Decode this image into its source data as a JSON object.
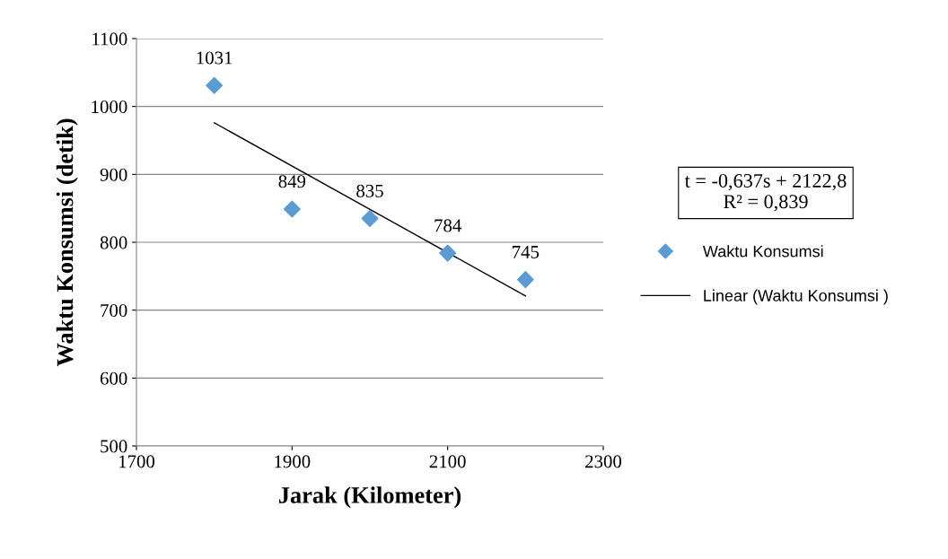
{
  "chart_data": {
    "type": "scatter",
    "xlabel": "Jarak (Kilometer)",
    "ylabel": "Waktu Konsumsi (detik)",
    "x": [
      1800,
      1900,
      2000,
      2100,
      2200
    ],
    "series": [
      {
        "name": "Waktu Konsumsi",
        "color": "#5b9bd5",
        "marker": "diamond",
        "values": [
          1031,
          849,
          835,
          784,
          745
        ],
        "data_labels": true
      },
      {
        "name": "Linear (Waktu Konsumsi )",
        "type": "line",
        "color": "#000000",
        "x": [
          1800,
          2200
        ],
        "values": [
          976,
          721
        ]
      }
    ],
    "annotations": [
      "t = -0,637s + 2122,8\nR² = 0,839"
    ],
    "xlim": [
      1700,
      2300
    ],
    "xticks": [
      1700,
      1900,
      2100,
      2300
    ],
    "ylim": [
      500,
      1100
    ],
    "yticks": [
      500,
      600,
      700,
      800,
      900,
      1000,
      1100
    ],
    "grid": "y",
    "legend": "right"
  }
}
